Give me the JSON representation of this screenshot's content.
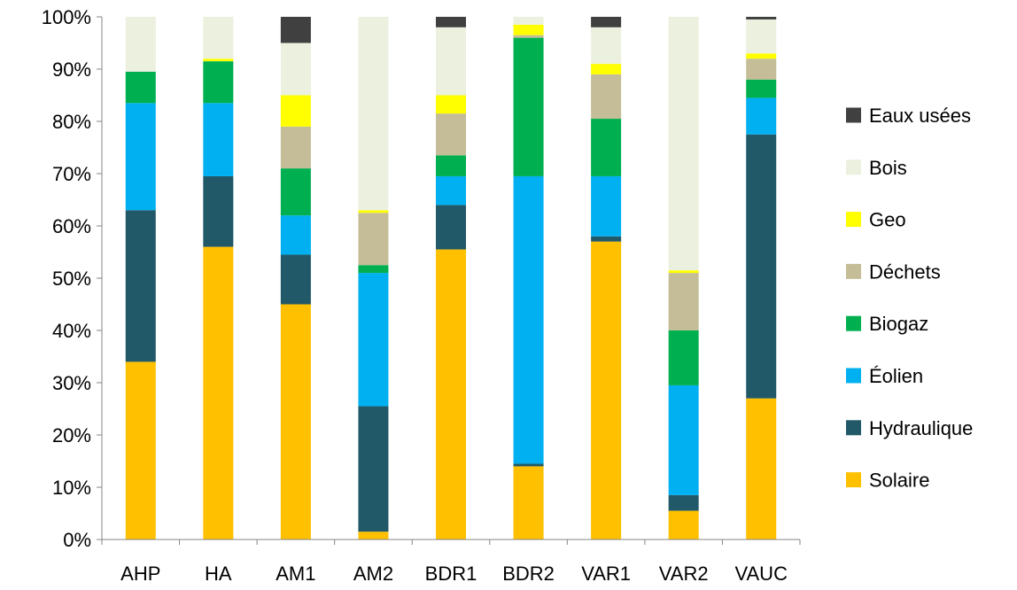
{
  "chart_data": {
    "type": "bar",
    "stacked": true,
    "categories": [
      "AHP",
      "HA",
      "AM1",
      "AM2",
      "BDR1",
      "BDR2",
      "VAR1",
      "VAR2",
      "VAUC"
    ],
    "ylim": [
      0,
      100
    ],
    "ytick_labels": [
      "0%",
      "10%",
      "20%",
      "30%",
      "40%",
      "50%",
      "60%",
      "70%",
      "80%",
      "90%",
      "100%"
    ],
    "grid": false,
    "legend_position": "right",
    "series": [
      {
        "name": "Solaire",
        "color": "#FFC000",
        "values": [
          34.0,
          56.0,
          45.0,
          1.5,
          55.5,
          14.0,
          57.0,
          5.5,
          27.0
        ]
      },
      {
        "name": "Hydraulique",
        "color": "#215968",
        "values": [
          29.0,
          13.5,
          9.5,
          24.0,
          8.5,
          0.5,
          1.0,
          3.0,
          50.5
        ]
      },
      {
        "name": "Éolien",
        "color": "#00B0F0",
        "values": [
          20.5,
          14.0,
          7.5,
          25.5,
          5.5,
          55.0,
          11.5,
          21.0,
          7.0
        ]
      },
      {
        "name": "Biogaz",
        "color": "#00B050",
        "values": [
          6.0,
          8.0,
          9.0,
          1.5,
          4.0,
          26.5,
          11.0,
          10.5,
          3.5
        ]
      },
      {
        "name": "Déchets",
        "color": "#C4BD97",
        "values": [
          0.0,
          0.0,
          8.0,
          10.0,
          8.0,
          0.5,
          8.5,
          11.0,
          4.0
        ]
      },
      {
        "name": "Geo",
        "color": "#FFFF00",
        "values": [
          0.0,
          0.5,
          6.0,
          0.5,
          3.5,
          2.0,
          2.0,
          0.5,
          1.0
        ]
      },
      {
        "name": "Bois",
        "color": "#EBF1DE",
        "values": [
          10.5,
          8.0,
          10.0,
          37.0,
          13.0,
          1.5,
          7.0,
          48.5,
          6.5
        ]
      },
      {
        "name": "Eaux usées",
        "color": "#404040",
        "values": [
          0.0,
          0.0,
          5.0,
          0.0,
          2.0,
          0.0,
          2.0,
          0.0,
          0.5
        ]
      }
    ]
  }
}
